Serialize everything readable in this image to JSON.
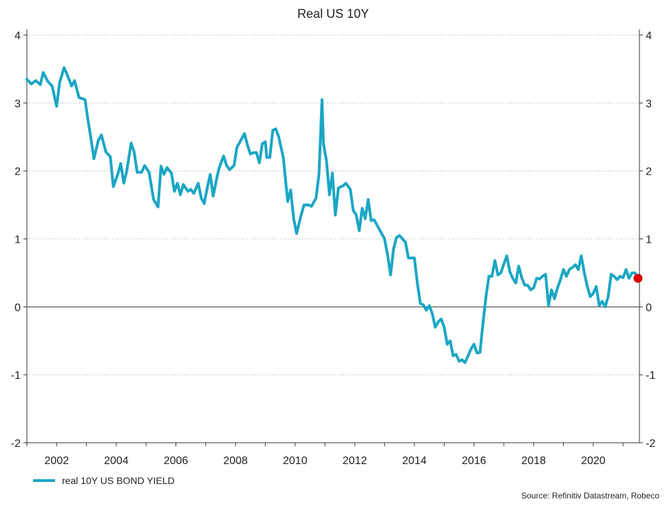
{
  "chart_data": {
    "type": "line",
    "title": "Real US 10Y",
    "source": "Source: Refinitiv Datastream, Robeco",
    "legend_position": "bottom-left",
    "grid": true,
    "gridline_style": "dotted",
    "xlim": [
      2001.0,
      2021.55
    ],
    "ylim": [
      -2,
      4
    ],
    "x_ticks": [
      2002,
      2004,
      2006,
      2008,
      2010,
      2012,
      2014,
      2016,
      2018,
      2020
    ],
    "y_ticks": [
      4,
      3,
      2,
      1,
      0,
      -1,
      -2
    ],
    "line_color": "#1aa6c4",
    "end_marker_color": "#e00000",
    "series": [
      {
        "name": "real 10Y US BOND YIELD",
        "points": [
          [
            2001.0,
            3.35
          ],
          [
            2001.15,
            3.28
          ],
          [
            2001.3,
            3.33
          ],
          [
            2001.45,
            3.27
          ],
          [
            2001.55,
            3.45
          ],
          [
            2001.7,
            3.32
          ],
          [
            2001.85,
            3.25
          ],
          [
            2002.0,
            2.95
          ],
          [
            2002.1,
            3.3
          ],
          [
            2002.25,
            3.52
          ],
          [
            2002.35,
            3.42
          ],
          [
            2002.5,
            3.25
          ],
          [
            2002.6,
            3.33
          ],
          [
            2002.75,
            3.08
          ],
          [
            2002.95,
            3.05
          ],
          [
            2003.05,
            2.75
          ],
          [
            2003.15,
            2.48
          ],
          [
            2003.25,
            2.18
          ],
          [
            2003.4,
            2.45
          ],
          [
            2003.5,
            2.53
          ],
          [
            2003.65,
            2.28
          ],
          [
            2003.8,
            2.21
          ],
          [
            2003.9,
            1.77
          ],
          [
            2004.05,
            1.95
          ],
          [
            2004.15,
            2.11
          ],
          [
            2004.25,
            1.82
          ],
          [
            2004.35,
            2.0
          ],
          [
            2004.5,
            2.41
          ],
          [
            2004.6,
            2.28
          ],
          [
            2004.7,
            1.98
          ],
          [
            2004.85,
            1.98
          ],
          [
            2004.95,
            2.08
          ],
          [
            2005.1,
            1.98
          ],
          [
            2005.25,
            1.58
          ],
          [
            2005.4,
            1.47
          ],
          [
            2005.5,
            2.07
          ],
          [
            2005.6,
            1.95
          ],
          [
            2005.7,
            2.05
          ],
          [
            2005.85,
            1.97
          ],
          [
            2005.95,
            1.7
          ],
          [
            2006.05,
            1.82
          ],
          [
            2006.15,
            1.65
          ],
          [
            2006.25,
            1.8
          ],
          [
            2006.4,
            1.7
          ],
          [
            2006.5,
            1.73
          ],
          [
            2006.6,
            1.67
          ],
          [
            2006.75,
            1.82
          ],
          [
            2006.85,
            1.6
          ],
          [
            2006.95,
            1.52
          ],
          [
            2007.05,
            1.75
          ],
          [
            2007.15,
            1.95
          ],
          [
            2007.25,
            1.63
          ],
          [
            2007.35,
            1.85
          ],
          [
            2007.45,
            2.04
          ],
          [
            2007.6,
            2.22
          ],
          [
            2007.7,
            2.08
          ],
          [
            2007.8,
            2.02
          ],
          [
            2007.95,
            2.08
          ],
          [
            2008.05,
            2.35
          ],
          [
            2008.15,
            2.43
          ],
          [
            2008.3,
            2.55
          ],
          [
            2008.4,
            2.38
          ],
          [
            2008.5,
            2.25
          ],
          [
            2008.6,
            2.27
          ],
          [
            2008.7,
            2.27
          ],
          [
            2008.8,
            2.12
          ],
          [
            2008.9,
            2.4
          ],
          [
            2009.0,
            2.43
          ],
          [
            2009.05,
            2.2
          ],
          [
            2009.15,
            2.2
          ],
          [
            2009.25,
            2.6
          ],
          [
            2009.35,
            2.62
          ],
          [
            2009.45,
            2.5
          ],
          [
            2009.6,
            2.2
          ],
          [
            2009.75,
            1.55
          ],
          [
            2009.85,
            1.72
          ],
          [
            2009.95,
            1.3
          ],
          [
            2010.05,
            1.08
          ],
          [
            2010.2,
            1.35
          ],
          [
            2010.3,
            1.5
          ],
          [
            2010.45,
            1.5
          ],
          [
            2010.55,
            1.48
          ],
          [
            2010.7,
            1.6
          ],
          [
            2010.8,
            1.95
          ],
          [
            2010.9,
            3.05
          ],
          [
            2010.95,
            2.4
          ],
          [
            2011.05,
            2.15
          ],
          [
            2011.15,
            1.65
          ],
          [
            2011.25,
            1.97
          ],
          [
            2011.35,
            1.35
          ],
          [
            2011.45,
            1.75
          ],
          [
            2011.6,
            1.78
          ],
          [
            2011.7,
            1.82
          ],
          [
            2011.85,
            1.73
          ],
          [
            2011.95,
            1.42
          ],
          [
            2012.05,
            1.35
          ],
          [
            2012.15,
            1.12
          ],
          [
            2012.25,
            1.45
          ],
          [
            2012.35,
            1.3
          ],
          [
            2012.45,
            1.58
          ],
          [
            2012.55,
            1.27
          ],
          [
            2012.65,
            1.28
          ],
          [
            2012.75,
            1.2
          ],
          [
            2012.85,
            1.12
          ],
          [
            2013.0,
            1.0
          ],
          [
            2013.1,
            0.77
          ],
          [
            2013.2,
            0.47
          ],
          [
            2013.3,
            0.85
          ],
          [
            2013.4,
            1.02
          ],
          [
            2013.5,
            1.05
          ],
          [
            2013.6,
            1.0
          ],
          [
            2013.7,
            0.95
          ],
          [
            2013.8,
            0.72
          ],
          [
            2013.9,
            0.72
          ],
          [
            2014.0,
            0.72
          ],
          [
            2014.1,
            0.35
          ],
          [
            2014.2,
            0.05
          ],
          [
            2014.3,
            0.03
          ],
          [
            2014.4,
            -0.05
          ],
          [
            2014.5,
            0.02
          ],
          [
            2014.6,
            -0.1
          ],
          [
            2014.7,
            -0.3
          ],
          [
            2014.8,
            -0.22
          ],
          [
            2014.9,
            -0.18
          ],
          [
            2015.0,
            -0.3
          ],
          [
            2015.1,
            -0.55
          ],
          [
            2015.2,
            -0.5
          ],
          [
            2015.3,
            -0.72
          ],
          [
            2015.4,
            -0.7
          ],
          [
            2015.5,
            -0.8
          ],
          [
            2015.6,
            -0.78
          ],
          [
            2015.7,
            -0.82
          ],
          [
            2015.8,
            -0.72
          ],
          [
            2015.9,
            -0.62
          ],
          [
            2016.0,
            -0.55
          ],
          [
            2016.1,
            -0.68
          ],
          [
            2016.2,
            -0.67
          ],
          [
            2016.3,
            -0.25
          ],
          [
            2016.4,
            0.15
          ],
          [
            2016.5,
            0.45
          ],
          [
            2016.6,
            0.45
          ],
          [
            2016.7,
            0.68
          ],
          [
            2016.8,
            0.47
          ],
          [
            2016.9,
            0.5
          ],
          [
            2017.0,
            0.63
          ],
          [
            2017.1,
            0.75
          ],
          [
            2017.2,
            0.52
          ],
          [
            2017.3,
            0.42
          ],
          [
            2017.4,
            0.35
          ],
          [
            2017.5,
            0.6
          ],
          [
            2017.6,
            0.43
          ],
          [
            2017.7,
            0.32
          ],
          [
            2017.8,
            0.32
          ],
          [
            2017.9,
            0.25
          ],
          [
            2018.0,
            0.28
          ],
          [
            2018.1,
            0.42
          ],
          [
            2018.2,
            0.41
          ],
          [
            2018.3,
            0.45
          ],
          [
            2018.4,
            0.48
          ],
          [
            2018.5,
            0.02
          ],
          [
            2018.6,
            0.25
          ],
          [
            2018.7,
            0.12
          ],
          [
            2018.8,
            0.28
          ],
          [
            2018.9,
            0.4
          ],
          [
            2019.0,
            0.55
          ],
          [
            2019.1,
            0.45
          ],
          [
            2019.2,
            0.55
          ],
          [
            2019.3,
            0.58
          ],
          [
            2019.4,
            0.62
          ],
          [
            2019.5,
            0.55
          ],
          [
            2019.6,
            0.75
          ],
          [
            2019.7,
            0.5
          ],
          [
            2019.8,
            0.3
          ],
          [
            2019.9,
            0.15
          ],
          [
            2020.0,
            0.2
          ],
          [
            2020.1,
            0.3
          ],
          [
            2020.2,
            0.02
          ],
          [
            2020.3,
            0.08
          ],
          [
            2020.4,
            0.0
          ],
          [
            2020.5,
            0.15
          ],
          [
            2020.6,
            0.48
          ],
          [
            2020.7,
            0.45
          ],
          [
            2020.8,
            0.4
          ],
          [
            2020.9,
            0.45
          ],
          [
            2021.0,
            0.43
          ],
          [
            2021.1,
            0.55
          ],
          [
            2021.2,
            0.42
          ],
          [
            2021.3,
            0.5
          ],
          [
            2021.4,
            0.5
          ],
          [
            2021.5,
            0.42
          ]
        ]
      }
    ]
  },
  "legend": {
    "label": "real 10Y US BOND YIELD"
  }
}
